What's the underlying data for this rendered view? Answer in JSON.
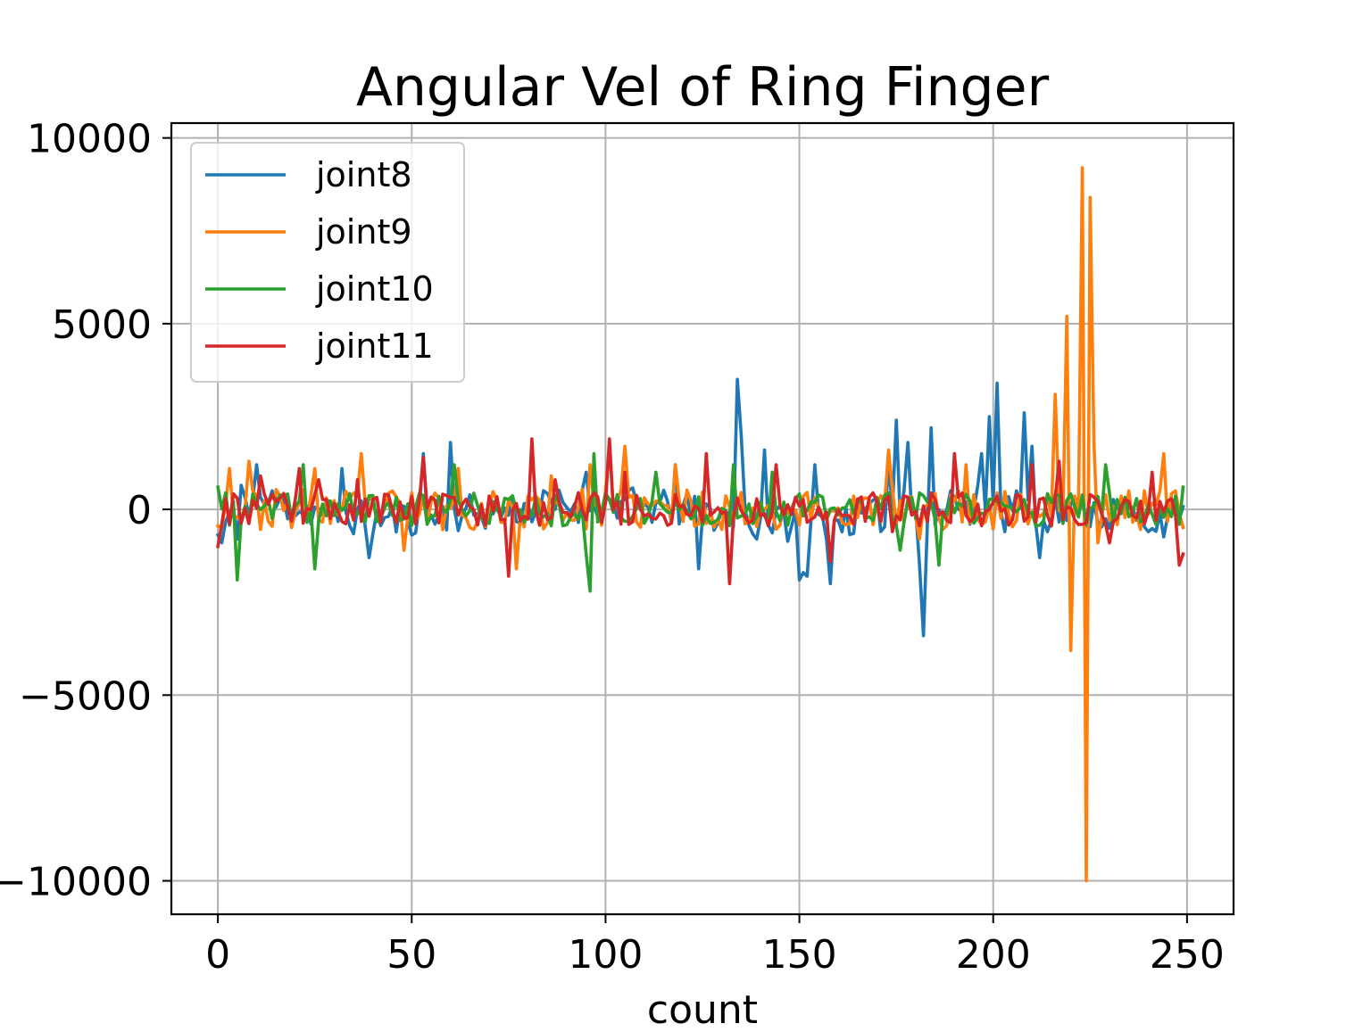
{
  "chart_data": {
    "type": "line",
    "title": "Angular Vel of Ring Finger",
    "xlabel": "count",
    "ylabel": "",
    "xlim": [
      -12,
      262
    ],
    "ylim": [
      -10900,
      10400
    ],
    "xticks": [
      0,
      50,
      100,
      150,
      200,
      250
    ],
    "xtick_labels": [
      "0",
      "50",
      "100",
      "150",
      "200",
      "250"
    ],
    "yticks": [
      10000,
      5000,
      0,
      -5000,
      -10000
    ],
    "ytick_labels": [
      "10000",
      "5000",
      "0",
      "−5000",
      "−10000"
    ],
    "grid": true,
    "legend_position": "upper-left",
    "x": {
      "start": 0,
      "end": 249,
      "step": 1
    },
    "series": [
      {
        "name": "joint8",
        "color": "#1f77b4",
        "amplitude": 500,
        "seed": 11,
        "baseline": [
          [
            0,
            -700
          ],
          [
            6,
            300
          ],
          [
            40,
            -300
          ],
          [
            100,
            200
          ],
          [
            150,
            -400
          ],
          [
            200,
            200
          ],
          [
            249,
            -300
          ]
        ],
        "events": [
          [
            1,
            -900
          ],
          [
            5,
            -800
          ],
          [
            10,
            1200
          ],
          [
            32,
            1100
          ],
          [
            39,
            -1300
          ],
          [
            53,
            1500
          ],
          [
            60,
            1800
          ],
          [
            95,
            1000
          ],
          [
            118,
            1200
          ],
          [
            124,
            -1600
          ],
          [
            134,
            3500
          ],
          [
            135,
            2000
          ],
          [
            139,
            -800
          ],
          [
            141,
            1600
          ],
          [
            150,
            -1900
          ],
          [
            151,
            -1700
          ],
          [
            152,
            -1800
          ],
          [
            154,
            1200
          ],
          [
            158,
            -2000
          ],
          [
            173,
            1300
          ],
          [
            175,
            2400
          ],
          [
            177,
            500
          ],
          [
            178,
            1800
          ],
          [
            181,
            -1500
          ],
          [
            182,
            -3400
          ],
          [
            184,
            2200
          ],
          [
            189,
            500
          ],
          [
            194,
            -400
          ],
          [
            197,
            1500
          ],
          [
            199,
            2500
          ],
          [
            201,
            3400
          ],
          [
            203,
            -600
          ],
          [
            206,
            500
          ],
          [
            208,
            2600
          ],
          [
            210,
            1700
          ],
          [
            212,
            -1300
          ],
          [
            214,
            -600
          ],
          [
            240,
            -600
          ]
        ]
      },
      {
        "name": "joint9",
        "color": "#ff7f0e",
        "amplitude": 550,
        "seed": 23,
        "baseline": [
          [
            0,
            0
          ],
          [
            249,
            0
          ]
        ],
        "events": [
          [
            3,
            1100
          ],
          [
            8,
            1300
          ],
          [
            25,
            1100
          ],
          [
            37,
            1500
          ],
          [
            48,
            -1100
          ],
          [
            62,
            1100
          ],
          [
            77,
            -1600
          ],
          [
            86,
            900
          ],
          [
            96,
            1200
          ],
          [
            101,
            1700
          ],
          [
            105,
            1700
          ],
          [
            118,
            1200
          ],
          [
            173,
            1600
          ],
          [
            181,
            -800
          ],
          [
            193,
            1200
          ],
          [
            216,
            3100
          ],
          [
            219,
            5200
          ],
          [
            220,
            -3800
          ],
          [
            223,
            9200
          ],
          [
            224,
            -10000
          ],
          [
            225,
            8400
          ],
          [
            226,
            1800
          ],
          [
            227,
            -900
          ],
          [
            244,
            1500
          ],
          [
            247,
            500
          ]
        ]
      },
      {
        "name": "joint10",
        "color": "#2ca02c",
        "amplitude": 450,
        "seed": 37,
        "baseline": [
          [
            0,
            0
          ],
          [
            249,
            0
          ]
        ],
        "events": [
          [
            0,
            600
          ],
          [
            5,
            -1900
          ],
          [
            22,
            1200
          ],
          [
            25,
            -1600
          ],
          [
            61,
            1200
          ],
          [
            95,
            -1200
          ],
          [
            96,
            -2200
          ],
          [
            97,
            1500
          ],
          [
            113,
            1000
          ],
          [
            133,
            1200
          ],
          [
            143,
            1000
          ],
          [
            176,
            -1100
          ],
          [
            186,
            -1500
          ],
          [
            229,
            1200
          ],
          [
            249,
            600
          ]
        ]
      },
      {
        "name": "joint11",
        "color": "#d62728",
        "amplitude": 450,
        "seed": 53,
        "baseline": [
          [
            0,
            0
          ],
          [
            249,
            0
          ]
        ],
        "events": [
          [
            0,
            -1000
          ],
          [
            5,
            300
          ],
          [
            11,
            900
          ],
          [
            21,
            1100
          ],
          [
            26,
            800
          ],
          [
            36,
            800
          ],
          [
            47,
            200
          ],
          [
            53,
            1400
          ],
          [
            75,
            -1800
          ],
          [
            81,
            1900
          ],
          [
            87,
            800
          ],
          [
            101,
            1900
          ],
          [
            105,
            1000
          ],
          [
            126,
            1500
          ],
          [
            132,
            -2000
          ],
          [
            144,
            1200
          ],
          [
            158,
            -1400
          ],
          [
            174,
            -600
          ],
          [
            190,
            1500
          ],
          [
            210,
            1200
          ],
          [
            217,
            1300
          ],
          [
            230,
            -900
          ],
          [
            241,
            1000
          ],
          [
            248,
            -1500
          ],
          [
            249,
            -1200
          ]
        ]
      }
    ]
  }
}
